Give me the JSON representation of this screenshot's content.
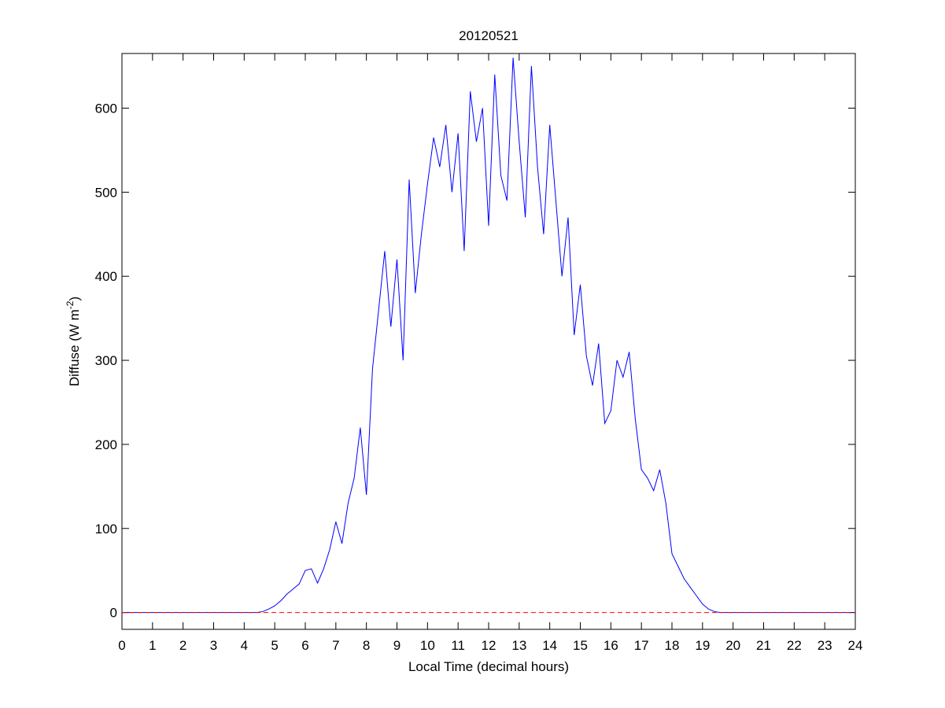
{
  "chart_data": {
    "type": "line",
    "title": "20120521",
    "xlabel": "Local Time (decimal hours)",
    "ylabel": {
      "text": "Diffuse (W m",
      "superscript": "-2",
      "suffix": ")"
    },
    "xlim": [
      0,
      24
    ],
    "ylim": [
      -20,
      665
    ],
    "xticks": [
      0,
      1,
      2,
      3,
      4,
      5,
      6,
      7,
      8,
      9,
      10,
      11,
      12,
      13,
      14,
      15,
      16,
      17,
      18,
      19,
      20,
      21,
      22,
      23,
      24
    ],
    "yticks": [
      0,
      100,
      200,
      300,
      400,
      500,
      600
    ],
    "series": [
      {
        "color": "#0000ff",
        "linestyle": "solid",
        "x": [
          0,
          0.2,
          0.4,
          0.6,
          0.8,
          1,
          1.2,
          1.4,
          1.6,
          1.8,
          2,
          2.2,
          2.4,
          2.6,
          2.8,
          3,
          3.2,
          3.4,
          3.6,
          3.8,
          4,
          4.2,
          4.4,
          4.6,
          4.8,
          5,
          5.2,
          5.4,
          5.6,
          5.8,
          6,
          6.2,
          6.4,
          6.6,
          6.8,
          7,
          7.2,
          7.4,
          7.6,
          7.8,
          8,
          8.2,
          8.4,
          8.6,
          8.8,
          9,
          9.2,
          9.4,
          9.6,
          9.8,
          10,
          10.2,
          10.4,
          10.6,
          10.8,
          11,
          11.2,
          11.4,
          11.6,
          11.8,
          12,
          12.2,
          12.4,
          12.6,
          12.8,
          13,
          13.2,
          13.4,
          13.6,
          13.8,
          14,
          14.2,
          14.4,
          14.6,
          14.8,
          15,
          15.2,
          15.4,
          15.6,
          15.8,
          16,
          16.2,
          16.4,
          16.6,
          16.8,
          17,
          17.2,
          17.4,
          17.6,
          17.8,
          18,
          18.2,
          18.4,
          18.6,
          18.8,
          19,
          19.2,
          19.4,
          19.6,
          19.8,
          20,
          20.2,
          20.4,
          20.6,
          20.8,
          21,
          21.2,
          21.4,
          21.6,
          21.8,
          22,
          22.2,
          22.4,
          22.6,
          22.8,
          23,
          23.2,
          23.4,
          23.6,
          23.8,
          24
        ],
        "values": [
          0,
          0,
          0,
          0,
          0,
          0,
          0,
          0,
          0,
          0,
          0,
          0,
          0,
          0,
          0,
          0,
          0,
          0,
          0,
          0,
          0,
          0,
          0,
          1,
          4,
          8,
          14,
          22,
          28,
          34,
          50,
          52,
          35,
          52,
          75,
          108,
          82,
          130,
          160,
          220,
          140,
          290,
          360,
          430,
          340,
          420,
          300,
          515,
          380,
          450,
          510,
          565,
          530,
          580,
          500,
          570,
          430,
          620,
          560,
          600,
          460,
          640,
          520,
          490,
          660,
          560,
          470,
          650,
          530,
          450,
          580,
          490,
          400,
          470,
          330,
          390,
          305,
          270,
          320,
          225,
          240,
          300,
          280,
          310,
          230,
          170,
          160,
          145,
          170,
          130,
          70,
          55,
          40,
          30,
          20,
          10,
          4,
          1,
          0,
          0,
          0,
          0,
          0,
          0,
          0,
          0,
          0,
          0,
          0,
          0,
          0,
          0,
          0,
          0,
          0,
          0,
          0,
          0,
          0,
          0,
          0
        ]
      },
      {
        "color": "#ff0000",
        "linestyle": "dashed",
        "x": [
          0,
          24
        ],
        "values": [
          0,
          0
        ]
      }
    ]
  }
}
